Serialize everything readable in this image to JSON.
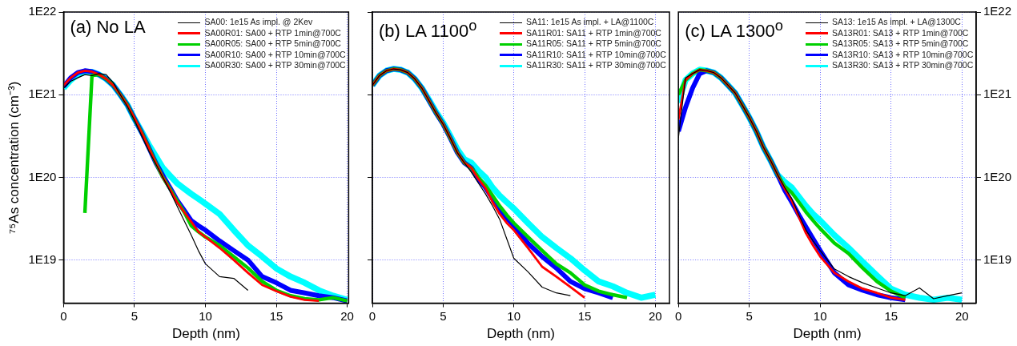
{
  "chart_data": [
    {
      "type": "line",
      "title": "(a) No LA",
      "xlabel": "Depth (nm)",
      "ylabel": "⁷⁵As concentration (cm⁻³)",
      "log": "y",
      "grid": true,
      "legend": "top right",
      "xlim": [
        0,
        20.1
      ],
      "xticks": [
        0,
        5,
        10,
        15,
        20
      ],
      "ylim": [
        3e+18,
        1e+22
      ],
      "yticks": [
        {
          "value": 1e+19,
          "label": "1E19"
        },
        {
          "value": 1e+20,
          "label": "1E20"
        },
        {
          "value": 1e+21,
          "label": "1E21"
        },
        {
          "value": 1e+22,
          "label": "1E22"
        }
      ],
      "x": [
        0,
        0.5,
        1,
        1.5,
        2,
        2.5,
        3,
        3.5,
        4,
        4.5,
        5,
        5.5,
        6,
        6.5,
        7,
        7.5,
        8,
        8.5,
        9,
        9.5,
        10,
        11,
        12,
        13,
        14,
        15,
        16,
        17,
        18,
        19,
        20
      ],
      "series": [
        {
          "name": "SA00: 1e15 As impl. @ 2Kev",
          "color": "#000000",
          "values": [
            1.2e+21,
            1.45e+21,
            1.6e+21,
            1.75e+21,
            1.7e+21,
            1.8e+21,
            1.75e+21,
            1.4e+21,
            1e+21,
            7.2e+20,
            4.9e+20,
            3.2e+20,
            2.1e+20,
            1.45e+20,
            1e+20,
            6.8e+19,
            4.5e+19,
            3e+19,
            2e+19,
            1.3e+19,
            9e+18,
            6.3e+18,
            6e+18,
            4.3e+18,
            null,
            null,
            null,
            null,
            null,
            null,
            null
          ]
        },
        {
          "name": "SA00R01: SA00 + RTP 1min@700C",
          "color": "#ff0000",
          "values": [
            1.3e+21,
            1.6e+21,
            1.85e+21,
            1.95e+21,
            1.9e+21,
            1.75e+21,
            1.55e+21,
            1.3e+21,
            1e+21,
            7.5e+20,
            5.2e+20,
            3.5e+20,
            2.3e+20,
            1.5e+20,
            1e+20,
            7.2e+19,
            5e+19,
            3.8e+19,
            2.9e+19,
            2.2e+19,
            1.9e+19,
            1.4e+19,
            1e+19,
            7e+18,
            5e+18,
            4.2e+18,
            3.6e+18,
            3.3e+18,
            3.2e+18,
            null,
            null
          ]
        },
        {
          "name": "SA00R05: SA00 + RTP 5min@700C",
          "color": "#00d000",
          "values": [
            null,
            null,
            null,
            3.7e+19,
            1.7e+21,
            1.75e+21,
            1.55e+21,
            1.3e+21,
            1e+21,
            7.5e+20,
            5.1e+20,
            3.5e+20,
            2.3e+20,
            1.5e+20,
            1e+20,
            7.3e+19,
            5.2e+19,
            3.8e+19,
            2.6e+19,
            2.2e+19,
            1.9e+19,
            1.5e+19,
            1.1e+19,
            8e+18,
            5.5e+18,
            4.3e+18,
            3.7e+18,
            3.4e+18,
            3.3e+18,
            3.5e+18,
            3.2e+18
          ]
        },
        {
          "name": "SA00R10: SA00 + RTP 10min@700C",
          "color": "#0000ff",
          "values": [
            1.25e+21,
            1.6e+21,
            1.85e+21,
            1.95e+21,
            1.9e+21,
            1.75e+21,
            1.55e+21,
            1.3e+21,
            1e+21,
            7.5e+20,
            5.1e+20,
            3.5e+20,
            2.3e+20,
            1.5e+20,
            1.05e+20,
            7.5e+19,
            5.3e+19,
            4e+19,
            3e+19,
            2.6e+19,
            2.3e+19,
            1.7e+19,
            1.3e+19,
            1e+19,
            6.3e+18,
            5.3e+18,
            4.3e+18,
            4e+18,
            3.7e+18,
            3.5e+18,
            3.2e+18
          ]
        },
        {
          "name": "SA00R30: SA00 + RTP 30min@700C",
          "color": "#00ffff",
          "values": [
            1.2e+21,
            1.5e+21,
            1.75e+21,
            1.9e+21,
            1.88e+21,
            1.75e+21,
            1.55e+21,
            1.3e+21,
            1e+21,
            7.5e+20,
            5.1e+20,
            3.6e+20,
            2.5e+20,
            1.8e+20,
            1.3e+20,
            1.05e+20,
            8.5e+19,
            7.3e+19,
            6.3e+19,
            5.5e+19,
            4.8e+19,
            3.6e+19,
            2.3e+19,
            1.5e+19,
            1.1e+19,
            7.9e+18,
            6.3e+18,
            5.3e+18,
            4.3e+18,
            3.7e+18,
            3.3e+18
          ]
        }
      ]
    },
    {
      "type": "line",
      "title": "(b) LA 1100$^{o}$",
      "xlabel": "Depth (nm)",
      "log": "y",
      "grid": true,
      "legend": "top right",
      "tick_labels": "x",
      "xlim": [
        0,
        21
      ],
      "xticks": [
        0,
        5,
        10,
        15,
        20
      ],
      "ylim": [
        3e+18,
        1e+22
      ],
      "yticks": [
        {
          "value": 1e+19,
          "label": null
        },
        {
          "value": 1e+20,
          "label": null
        },
        {
          "value": 1e+21,
          "label": null
        },
        {
          "value": 1e+22,
          "label": null
        }
      ],
      "x": [
        0,
        0.5,
        1,
        1.5,
        2,
        2.5,
        3,
        3.5,
        4,
        4.5,
        5,
        5.5,
        6,
        6.5,
        7,
        7.5,
        8,
        8.5,
        9,
        9.5,
        10,
        11,
        12,
        13,
        14,
        15,
        16,
        17,
        18,
        19,
        20
      ],
      "series": [
        {
          "name": "SA11: 1e15 As impl. + LA@1100C",
          "color": "#000000",
          "values": [
            1.3e+21,
            1.7e+21,
            1.95e+21,
            2.05e+21,
            2e+21,
            1.85e+21,
            1.55e+21,
            1.2e+21,
            8.5e+20,
            6e+20,
            4.4e+20,
            3e+20,
            2e+20,
            1.5e+20,
            1.15e+20,
            8.5e+19,
            6.3e+19,
            4.5e+19,
            3.1e+19,
            1.8e+19,
            1.05e+19,
            7.2e+18,
            4.7e+18,
            4e+18,
            3.7e+18,
            null,
            null,
            null,
            null,
            null,
            null
          ]
        },
        {
          "name": "SA11R01: SA11 + RTP 1min@700C",
          "color": "#ff0000",
          "values": [
            1.3e+21,
            1.7e+21,
            1.95e+21,
            2.05e+21,
            2e+21,
            1.85e+21,
            1.55e+21,
            1.2e+21,
            8.5e+20,
            6e+20,
            4.4e+20,
            3e+20,
            2e+20,
            1.5e+20,
            1.3e+20,
            9.5e+19,
            7.4e+19,
            5e+19,
            3.6e+19,
            2.8e+19,
            2.3e+19,
            1.4e+19,
            8.3e+18,
            6.3e+18,
            4.7e+18,
            3.5e+18,
            null,
            null,
            null,
            null,
            null
          ]
        },
        {
          "name": "SA11R05: SA11 + RTP 5min@700C",
          "color": "#00d000",
          "values": [
            1.3e+21,
            1.7e+21,
            1.95e+21,
            2.05e+21,
            2e+21,
            1.85e+21,
            1.55e+21,
            1.2e+21,
            8.5e+20,
            6e+20,
            4.4e+20,
            3e+20,
            2e+20,
            1.5e+20,
            1.3e+20,
            1e+20,
            8e+19,
            6e+19,
            4.5e+19,
            3.5e+19,
            2.8e+19,
            1.9e+19,
            1.3e+19,
            9e+18,
            7e+18,
            5e+18,
            4.2e+18,
            3.8e+18,
            3.5e+18,
            null,
            null
          ]
        },
        {
          "name": "SA11R10: SA11 + RTP 10min@700C",
          "color": "#0000ff",
          "values": [
            1.3e+21,
            1.7e+21,
            1.95e+21,
            2.05e+21,
            2e+21,
            1.85e+21,
            1.55e+21,
            1.2e+21,
            8.5e+20,
            6e+20,
            4.4e+20,
            3e+20,
            2e+20,
            1.5e+20,
            1.3e+20,
            9.5e+19,
            7.5e+19,
            5.5e+19,
            4e+19,
            3.2e+19,
            2.6e+19,
            1.6e+19,
            1.1e+19,
            8e+18,
            5.5e+18,
            4.5e+18,
            4e+18,
            3.5e+18,
            null,
            null,
            null
          ]
        },
        {
          "name": "SA11R30: SA11 + RTP 30min@700C",
          "color": "#00ffff",
          "values": [
            1.3e+21,
            1.7e+21,
            1.95e+21,
            2.05e+21,
            2e+21,
            1.85e+21,
            1.55e+21,
            1.2e+21,
            8.7e+20,
            6.2e+20,
            4.6e+20,
            3.2e+20,
            2.2e+20,
            1.65e+20,
            1.5e+20,
            1.2e+20,
            1e+20,
            7.5e+19,
            6e+19,
            5e+19,
            4.2e+19,
            2.8e+19,
            1.9e+19,
            1.4e+19,
            1.05e+19,
            7.5e+18,
            5.5e+18,
            4.8e+18,
            4e+18,
            3.5e+18,
            3.8e+18
          ]
        }
      ]
    },
    {
      "type": "line",
      "title": "(c) LA 1300$^{o}$",
      "xlabel": "Depth (nm)",
      "log": "y2",
      "grid": true,
      "legend": "top right",
      "xlim": [
        0,
        21
      ],
      "xticks": [
        0,
        5,
        10,
        15,
        20
      ],
      "y2lim": [
        3e+18,
        1e+22
      ],
      "y2ticks": [
        {
          "value": 1e+19,
          "label": "1E19"
        },
        {
          "value": 1e+20,
          "label": "1E20"
        },
        {
          "value": 1e+21,
          "label": "1E21"
        },
        {
          "value": 1e+22,
          "label": "1E22"
        }
      ],
      "x": [
        0,
        0.5,
        1,
        1.5,
        2,
        2.5,
        3,
        3.5,
        4,
        4.5,
        5,
        5.5,
        6,
        6.5,
        7,
        7.5,
        8,
        8.5,
        9,
        9.5,
        10,
        11,
        12,
        13,
        14,
        15,
        16,
        17,
        18,
        19,
        20
      ],
      "series": [
        {
          "name": "SA13: 1e15 As impl. + LA@1300C",
          "color": "#000000",
          "axis": "y2",
          "values": [
            3e+20,
            1.6e+21,
            1.8e+21,
            2e+21,
            1.95e+21,
            1.85e+21,
            1.6e+21,
            1.3e+21,
            1.05e+21,
            7.5e+20,
            5.3e+20,
            3.6e+20,
            2.3e+20,
            1.6e+20,
            1.07e+20,
            7.5e+19,
            5.5e+19,
            3.5e+19,
            2.3e+19,
            1.7e+19,
            1.3e+19,
            7.8e+18,
            6.3e+18,
            5.3e+18,
            4.6e+18,
            4e+18,
            3.7e+18,
            4.6e+18,
            3.4e+18,
            3.7e+18,
            4e+18
          ]
        },
        {
          "name": "SA13R01: SA13 + RTP 1min@700C",
          "color": "#ff0000",
          "axis": "y2",
          "values": [
            5e+20,
            1.5e+21,
            1.8e+21,
            2e+21,
            1.95e+21,
            1.85e+21,
            1.6e+21,
            1.3e+21,
            1.05e+21,
            7.5e+20,
            5.3e+20,
            3.6e+20,
            2.3e+20,
            1.6e+20,
            1.07e+20,
            7.3e+19,
            5.2e+19,
            3.3e+19,
            2.1e+19,
            1.5e+19,
            1.1e+19,
            7e+18,
            5.5e+18,
            4.5e+18,
            4e+18,
            3.5e+18,
            3.3e+18,
            null,
            null,
            null,
            null
          ]
        },
        {
          "name": "SA13R05: SA13 + RTP 5min@700C",
          "color": "#00d000",
          "axis": "y2",
          "values": [
            1e+21,
            1.5e+21,
            1.8e+21,
            2e+21,
            1.95e+21,
            1.85e+21,
            1.6e+21,
            1.3e+21,
            1.05e+21,
            7.5e+20,
            5.3e+20,
            3.6e+20,
            2.3e+20,
            1.6e+20,
            1.07e+20,
            7.8e+19,
            6.5e+19,
            5e+19,
            3.8e+19,
            3e+19,
            2.4e+19,
            1.6e+19,
            1.2e+19,
            8e+18,
            5.5e+18,
            4.2e+18,
            3.5e+18,
            null,
            null,
            null,
            null
          ]
        },
        {
          "name": "SA13R10: SA13 + RTP 10min@700C",
          "color": "#0000ff",
          "axis": "y2",
          "values": [
            3.6e+20,
            7e+20,
            1.2e+21,
            1.8e+21,
            1.95e+21,
            1.85e+21,
            1.6e+21,
            1.3e+21,
            1.05e+21,
            7.5e+20,
            5.3e+20,
            3.6e+20,
            2.3e+20,
            1.6e+20,
            1.07e+20,
            7e+19,
            5e+19,
            3.5e+19,
            2.5e+19,
            1.8e+19,
            1.3e+19,
            7e+18,
            5e+18,
            4.3e+18,
            3.8e+18,
            3.5e+18,
            3.3e+18,
            null,
            null,
            null,
            null
          ]
        },
        {
          "name": "SA13R30: SA13 + RTP 30min@700C",
          "color": "#00ffff",
          "axis": "y2",
          "values": [
            8e+20,
            1.5e+21,
            1.8e+21,
            2e+21,
            1.95e+21,
            1.85e+21,
            1.6e+21,
            1.3e+21,
            1.05e+21,
            7.5e+20,
            5.3e+20,
            3.6e+20,
            2.3e+20,
            1.6e+20,
            1.07e+20,
            8.8e+19,
            7.5e+19,
            5.8e+19,
            4.5e+19,
            3.6e+19,
            3e+19,
            2e+19,
            1.4e+19,
            9.5e+18,
            6.5e+18,
            4.5e+18,
            3.8e+18,
            3.5e+18,
            3.3e+18,
            3.5e+18,
            3.3e+18
          ]
        }
      ]
    }
  ]
}
